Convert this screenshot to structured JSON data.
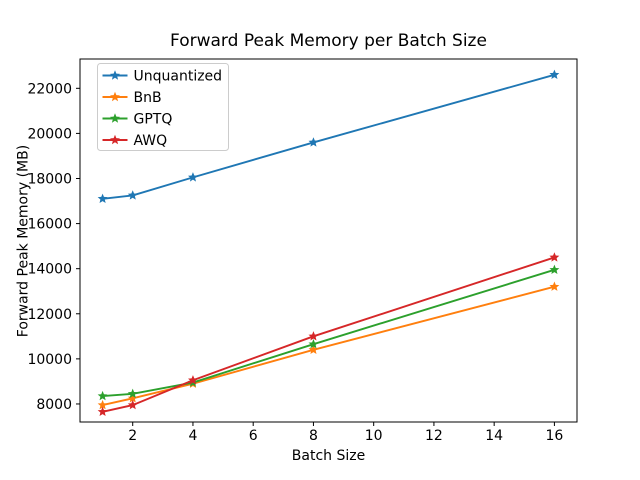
{
  "figure": {
    "background": "#ffffff",
    "spine_color": "#000000",
    "legend_border_color": "#cccccc",
    "legend_background": "rgba(255,255,255,0.85)"
  },
  "chart_data": {
    "type": "line",
    "title": "Forward Peak Memory per Batch Size",
    "xlabel": "Batch Size",
    "ylabel": "Forward Peak Memory (MB)",
    "x": [
      1,
      2,
      4,
      8,
      16
    ],
    "series": [
      {
        "name": "Unquantized",
        "color": "#1f77b4",
        "values": [
          17100,
          17250,
          18050,
          19600,
          22600
        ]
      },
      {
        "name": "BnB",
        "color": "#ff7f0e",
        "values": [
          7950,
          8250,
          8900,
          10400,
          13200
        ]
      },
      {
        "name": "GPTQ",
        "color": "#2ca02c",
        "values": [
          8350,
          8450,
          8950,
          10650,
          13950
        ]
      },
      {
        "name": "AWQ",
        "color": "#d62728",
        "values": [
          7650,
          7950,
          9050,
          11000,
          14500
        ]
      }
    ],
    "marker": "star",
    "xticks": [
      2,
      4,
      6,
      8,
      10,
      12,
      14,
      16
    ],
    "yticks": [
      8000,
      10000,
      12000,
      14000,
      16000,
      18000,
      20000,
      22000
    ],
    "xlim": [
      0.25,
      16.75
    ],
    "ylim": [
      7200,
      23300
    ],
    "grid": false,
    "legend_position": "upper left"
  }
}
